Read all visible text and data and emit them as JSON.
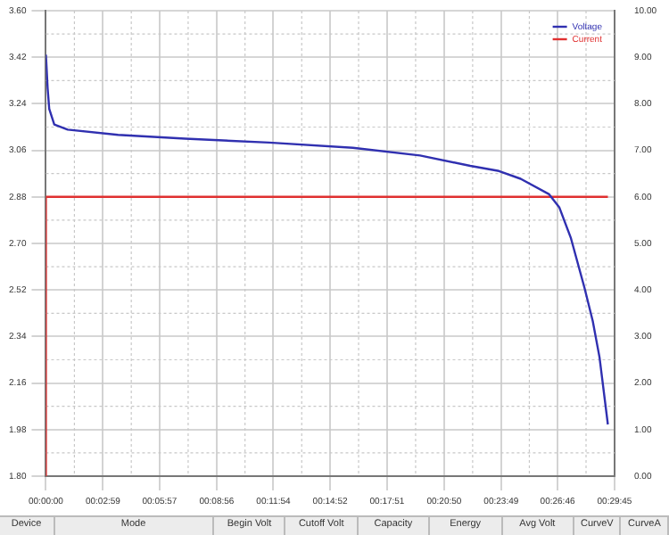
{
  "chart_data": {
    "type": "line",
    "legend": "top right",
    "grid": true,
    "marker": "none",
    "line_style": "solid",
    "xlim": [
      0,
      0.49583
    ],
    "xticks": [
      {
        "value": 0,
        "label": "00:00:00"
      },
      {
        "value": 0.04972,
        "label": "00:02:59"
      },
      {
        "value": 0.09917,
        "label": "00:05:57"
      },
      {
        "value": 0.14889,
        "label": "00:08:56"
      },
      {
        "value": 0.19833,
        "label": "00:11:54"
      },
      {
        "value": 0.24778,
        "label": "00:14:52"
      },
      {
        "value": 0.2975,
        "label": "00:17:51"
      },
      {
        "value": 0.34722,
        "label": "00:20:50"
      },
      {
        "value": 0.39694,
        "label": "00:23:49"
      },
      {
        "value": 0.44611,
        "label": "00:26:46"
      },
      {
        "value": 0.49583,
        "label": "00:29:45"
      }
    ],
    "ylim": [
      1.8,
      3.6
    ],
    "yticks": [
      {
        "value": 1.8,
        "label": "1.80"
      },
      {
        "value": 1.98,
        "label": "1.98"
      },
      {
        "value": 2.16,
        "label": "2.16"
      },
      {
        "value": 2.34,
        "label": "2.34"
      },
      {
        "value": 2.52,
        "label": "2.52"
      },
      {
        "value": 2.7,
        "label": "2.70"
      },
      {
        "value": 2.88,
        "label": "2.88"
      },
      {
        "value": 3.06,
        "label": "3.06"
      },
      {
        "value": 3.24,
        "label": "3.24"
      },
      {
        "value": 3.42,
        "label": "3.42"
      },
      {
        "value": 3.6,
        "label": "3.60"
      }
    ],
    "y2lim": [
      0,
      10
    ],
    "y2ticks": [
      {
        "value": 0,
        "label": "0.00"
      },
      {
        "value": 1,
        "label": "1.00"
      },
      {
        "value": 2,
        "label": "2.00"
      },
      {
        "value": 3,
        "label": "3.00"
      },
      {
        "value": 4,
        "label": "4.00"
      },
      {
        "value": 5,
        "label": "5.00"
      },
      {
        "value": 6,
        "label": "6.00"
      },
      {
        "value": 7,
        "label": "7.00"
      },
      {
        "value": 8,
        "label": "8.00"
      },
      {
        "value": 9,
        "label": "9.00"
      },
      {
        "value": 10,
        "label": "10.00"
      }
    ],
    "series": [
      {
        "name": "Voltage",
        "color": "#3030b0",
        "x": [
          0,
          0.0015,
          0.0029,
          0.0073,
          0.019,
          0.0629,
          0.1214,
          0.1945,
          0.2677,
          0.3262,
          0.37,
          0.395,
          0.4139,
          0.4388,
          0.4476,
          0.4578,
          0.4695,
          0.4768,
          0.4827,
          0.49
        ],
        "values": [
          3.43,
          3.3,
          3.22,
          3.16,
          3.14,
          3.12,
          3.105,
          3.09,
          3.07,
          3.04,
          3.0,
          2.98,
          2.95,
          2.89,
          2.84,
          2.72,
          2.53,
          2.4,
          2.26,
          2.0
        ]
      },
      {
        "name": "Current",
        "color": "#e03030",
        "axis": "y2",
        "x": [
          0,
          0,
          0.49
        ],
        "values": [
          0,
          6,
          6
        ]
      }
    ],
    "annotations": [
      "Device",
      "Mode",
      "Begin Volt",
      "Cutoff Volt",
      "Capacity",
      "Energy",
      "Avg Volt",
      "CurveV",
      "CurveA"
    ]
  }
}
